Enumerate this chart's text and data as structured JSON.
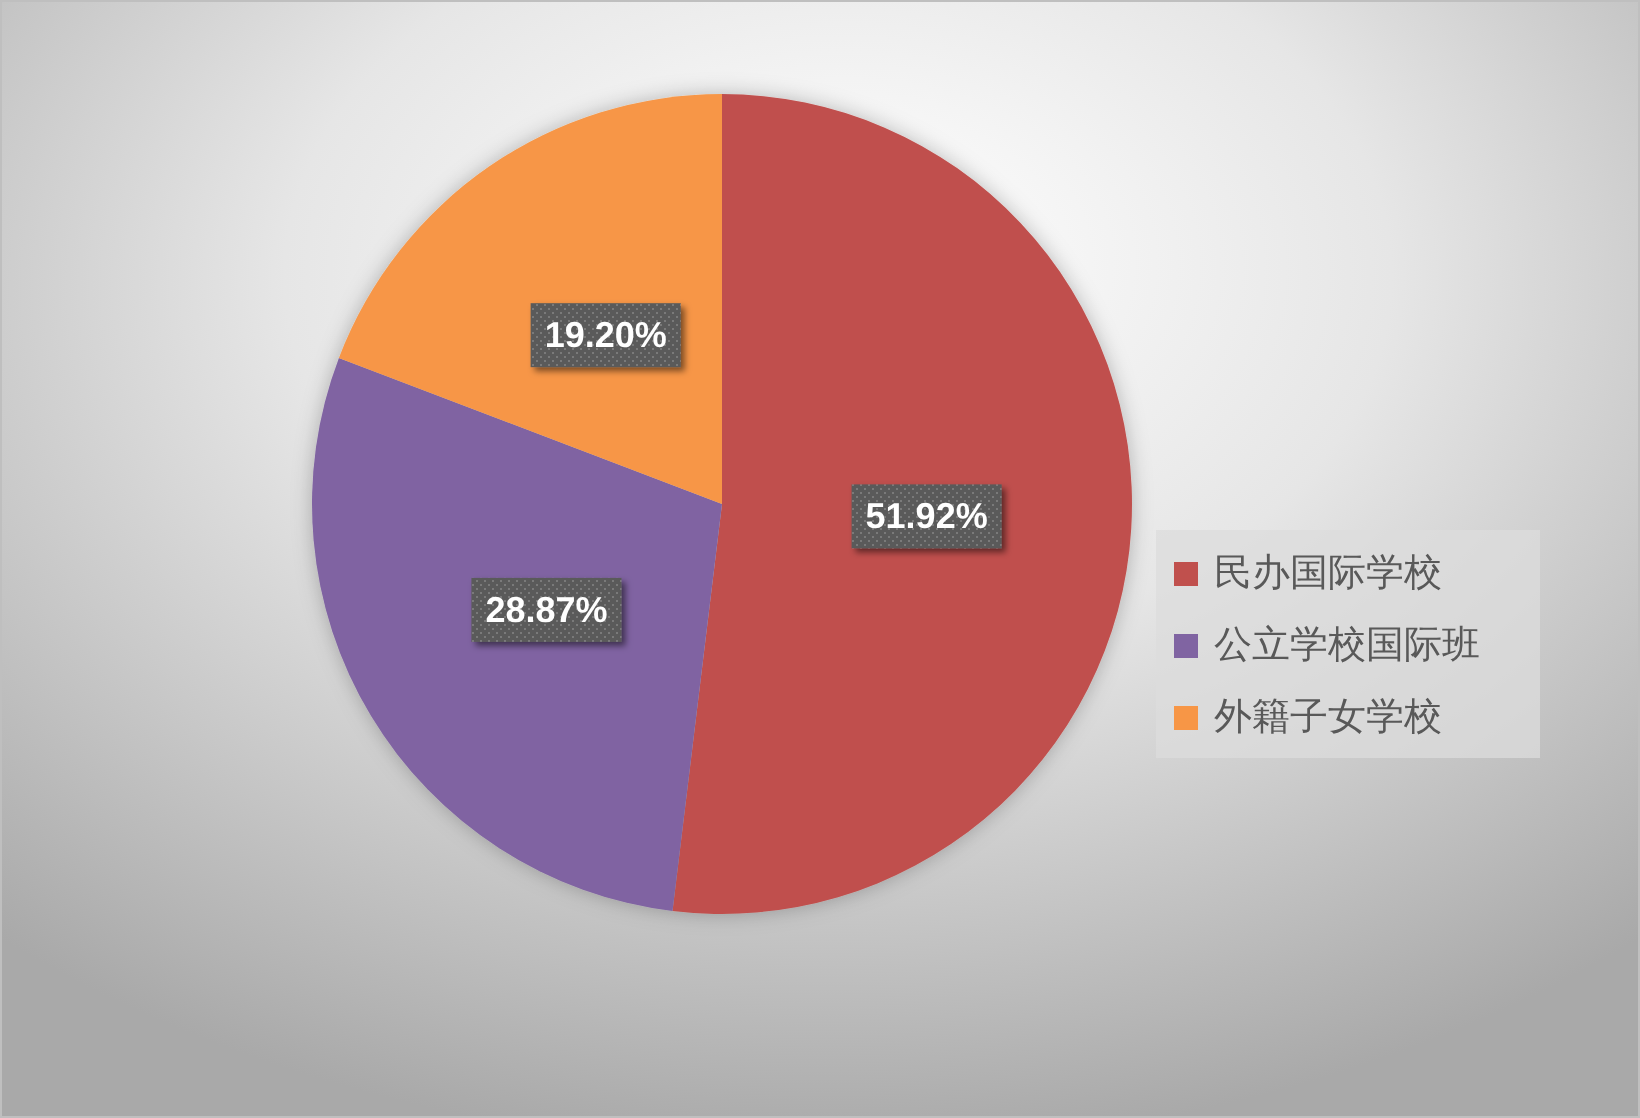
{
  "chart_data": {
    "type": "pie",
    "categories": [
      "民办国际学校",
      "公立学校国际班",
      "外籍子女学校"
    ],
    "values": [
      51.92,
      28.87,
      19.2
    ],
    "colors": [
      "#c0504d",
      "#8064a2",
      "#f79646"
    ],
    "value_labels": [
      "51.92%",
      "28.87%",
      "19.20%"
    ],
    "legend": "right"
  }
}
